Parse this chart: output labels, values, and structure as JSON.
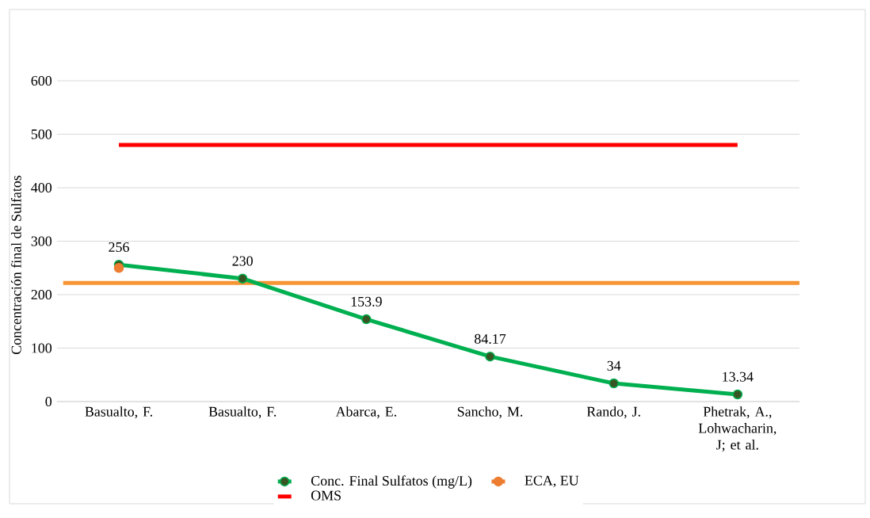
{
  "chart_data": {
    "type": "line",
    "ylabel": "Concentración final de Sulfatos",
    "categories": [
      "Basualto, F.",
      "Basualto, F.",
      "Abarca, E.",
      "Sancho, M.",
      "Rando, J.",
      "Phetrak, A., Lohwacharin, J; et al."
    ],
    "series": [
      {
        "name": "Conc. Final Sulfatos (mg/L)",
        "color": "#00b050",
        "values": [
          256,
          230,
          153.9,
          84.17,
          34,
          13.34
        ],
        "value_labels": [
          "256",
          "230",
          "153.9",
          "84.17",
          "34",
          "13.34"
        ]
      },
      {
        "name": "ECA, EU",
        "color": "#ed7d31",
        "values": [
          250,
          null,
          null,
          null,
          null,
          null
        ]
      },
      {
        "name": "OMS",
        "color": "#ff0000",
        "values": [
          480,
          480,
          480,
          480,
          480,
          480
        ],
        "marker": "none"
      }
    ],
    "ref_lines": [
      {
        "axis": "y",
        "value": 222,
        "color": "#f79433"
      }
    ],
    "ylim": [
      0,
      600
    ],
    "yticks": [
      0,
      100,
      200,
      300,
      400,
      500,
      600
    ],
    "grid": "y",
    "legend": "bottom",
    "marker": "circle"
  }
}
